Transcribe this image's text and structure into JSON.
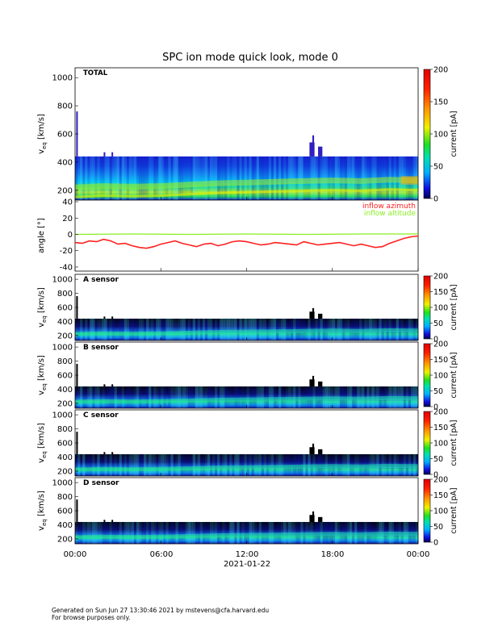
{
  "title": "SPC ion mode quick look, mode 0",
  "date_label": "2021-01-22",
  "x_ticks": [
    "00:00",
    "06:00",
    "12:00",
    "18:00",
    "00:00"
  ],
  "footer": [
    "Generated on Sun Jun 27 13:30:46 2021 by mstevens@cfa.harvard.edu",
    "For browse purposes only."
  ],
  "colors": {
    "azimuth": "#ff2020",
    "altitude": "#88ee22"
  },
  "chart_data": [
    {
      "type": "heatmap",
      "panel": "total",
      "label": "TOTAL",
      "ylabel": "v_eq [km/s]",
      "ylim": [
        130,
        1070
      ],
      "yticks": [
        200,
        400,
        600,
        800,
        1000
      ],
      "colorbar": {
        "label": "current [pA]",
        "range": [
          0,
          200
        ],
        "ticks": [
          0,
          50,
          100,
          150,
          200
        ]
      },
      "x_range_hours": [
        0,
        24
      ],
      "instrument_cutoff_kms": 440,
      "core_speed_kms": [
        {
          "t": 0,
          "v": 220
        },
        {
          "t": 2,
          "v": 230
        },
        {
          "t": 4,
          "v": 225
        },
        {
          "t": 6,
          "v": 230
        },
        {
          "t": 8,
          "v": 240
        },
        {
          "t": 10,
          "v": 250
        },
        {
          "t": 12,
          "v": 255
        },
        {
          "t": 14,
          "v": 260
        },
        {
          "t": 16,
          "v": 265
        },
        {
          "t": 18,
          "v": 270
        },
        {
          "t": 20,
          "v": 265
        },
        {
          "t": 22,
          "v": 275
        },
        {
          "t": 24,
          "v": 270
        }
      ]
    },
    {
      "type": "line",
      "panel": "angles",
      "ylabel": "angle [°]",
      "ylim": [
        -45,
        42
      ],
      "yticks": [
        -40,
        -20,
        0,
        20,
        40
      ],
      "x_range_hours": [
        0,
        24
      ],
      "series": [
        {
          "name": "inflow azimuth",
          "color": "#ff2020",
          "points": [
            {
              "t": 0,
              "v": -10
            },
            {
              "t": 0.5,
              "v": -11
            },
            {
              "t": 1,
              "v": -8
            },
            {
              "t": 1.5,
              "v": -9
            },
            {
              "t": 2,
              "v": -6
            },
            {
              "t": 2.5,
              "v": -8
            },
            {
              "t": 3,
              "v": -12
            },
            {
              "t": 3.5,
              "v": -11
            },
            {
              "t": 4,
              "v": -14
            },
            {
              "t": 4.5,
              "v": -16
            },
            {
              "t": 5,
              "v": -17
            },
            {
              "t": 5.5,
              "v": -15
            },
            {
              "t": 6,
              "v": -12
            },
            {
              "t": 6.5,
              "v": -10
            },
            {
              "t": 7,
              "v": -8
            },
            {
              "t": 7.5,
              "v": -11
            },
            {
              "t": 8,
              "v": -13
            },
            {
              "t": 8.5,
              "v": -15
            },
            {
              "t": 9,
              "v": -12
            },
            {
              "t": 9.5,
              "v": -11
            },
            {
              "t": 10,
              "v": -14
            },
            {
              "t": 10.5,
              "v": -12
            },
            {
              "t": 11,
              "v": -9
            },
            {
              "t": 11.5,
              "v": -8
            },
            {
              "t": 12,
              "v": -9
            },
            {
              "t": 12.5,
              "v": -11
            },
            {
              "t": 13,
              "v": -13
            },
            {
              "t": 13.5,
              "v": -12
            },
            {
              "t": 14,
              "v": -10
            },
            {
              "t": 14.5,
              "v": -11
            },
            {
              "t": 15,
              "v": -12
            },
            {
              "t": 15.5,
              "v": -13
            },
            {
              "t": 16,
              "v": -9
            },
            {
              "t": 16.5,
              "v": -11
            },
            {
              "t": 17,
              "v": -13
            },
            {
              "t": 17.5,
              "v": -12
            },
            {
              "t": 18,
              "v": -11
            },
            {
              "t": 18.5,
              "v": -10
            },
            {
              "t": 19,
              "v": -12
            },
            {
              "t": 19.5,
              "v": -14
            },
            {
              "t": 20,
              "v": -12
            },
            {
              "t": 20.5,
              "v": -14
            },
            {
              "t": 21,
              "v": -16
            },
            {
              "t": 21.5,
              "v": -15
            },
            {
              "t": 22,
              "v": -11
            },
            {
              "t": 22.5,
              "v": -8
            },
            {
              "t": 23,
              "v": -5
            },
            {
              "t": 23.5,
              "v": -3
            },
            {
              "t": 24,
              "v": -2
            }
          ]
        },
        {
          "name": "inflow altitude",
          "color": "#88ee22",
          "points": [
            {
              "t": 0,
              "v": 0
            },
            {
              "t": 4,
              "v": 0.5
            },
            {
              "t": 8,
              "v": 0
            },
            {
              "t": 12,
              "v": 0.5
            },
            {
              "t": 16,
              "v": 0
            },
            {
              "t": 20,
              "v": 0.5
            },
            {
              "t": 24,
              "v": 0.5
            }
          ]
        }
      ]
    },
    {
      "type": "heatmap",
      "panel": "A",
      "label": "A sensor",
      "ylabel": "v_eq [km/s]",
      "ylim": [
        130,
        1070
      ],
      "yticks": [
        200,
        400,
        600,
        800,
        1000
      ],
      "colorbar": {
        "label": "current [pA]",
        "range": [
          0,
          200
        ],
        "ticks": [
          0,
          50,
          100,
          150,
          200
        ]
      },
      "x_range_hours": [
        0,
        24
      ]
    },
    {
      "type": "heatmap",
      "panel": "B",
      "label": "B sensor",
      "ylabel": "v_eq [km/s]",
      "ylim": [
        130,
        1070
      ],
      "yticks": [
        200,
        400,
        600,
        800,
        1000
      ],
      "colorbar": {
        "label": "current [pA]",
        "range": [
          0,
          200
        ],
        "ticks": [
          0,
          50,
          100,
          150,
          200
        ]
      },
      "x_range_hours": [
        0,
        24
      ]
    },
    {
      "type": "heatmap",
      "panel": "C",
      "label": "C sensor",
      "ylabel": "v_eq [km/s]",
      "ylim": [
        130,
        1070
      ],
      "yticks": [
        200,
        400,
        600,
        800,
        1000
      ],
      "colorbar": {
        "label": "current [pA]",
        "range": [
          0,
          200
        ],
        "ticks": [
          0,
          50,
          100,
          150,
          200
        ]
      },
      "x_range_hours": [
        0,
        24
      ]
    },
    {
      "type": "heatmap",
      "panel": "D",
      "label": "D sensor",
      "ylabel": "v_eq [km/s]",
      "ylim": [
        130,
        1070
      ],
      "yticks": [
        200,
        400,
        600,
        800,
        1000
      ],
      "colorbar": {
        "label": "current [pA]",
        "range": [
          0,
          200
        ],
        "ticks": [
          0,
          50,
          100,
          150,
          200
        ]
      },
      "x_range_hours": [
        0,
        24
      ]
    }
  ]
}
